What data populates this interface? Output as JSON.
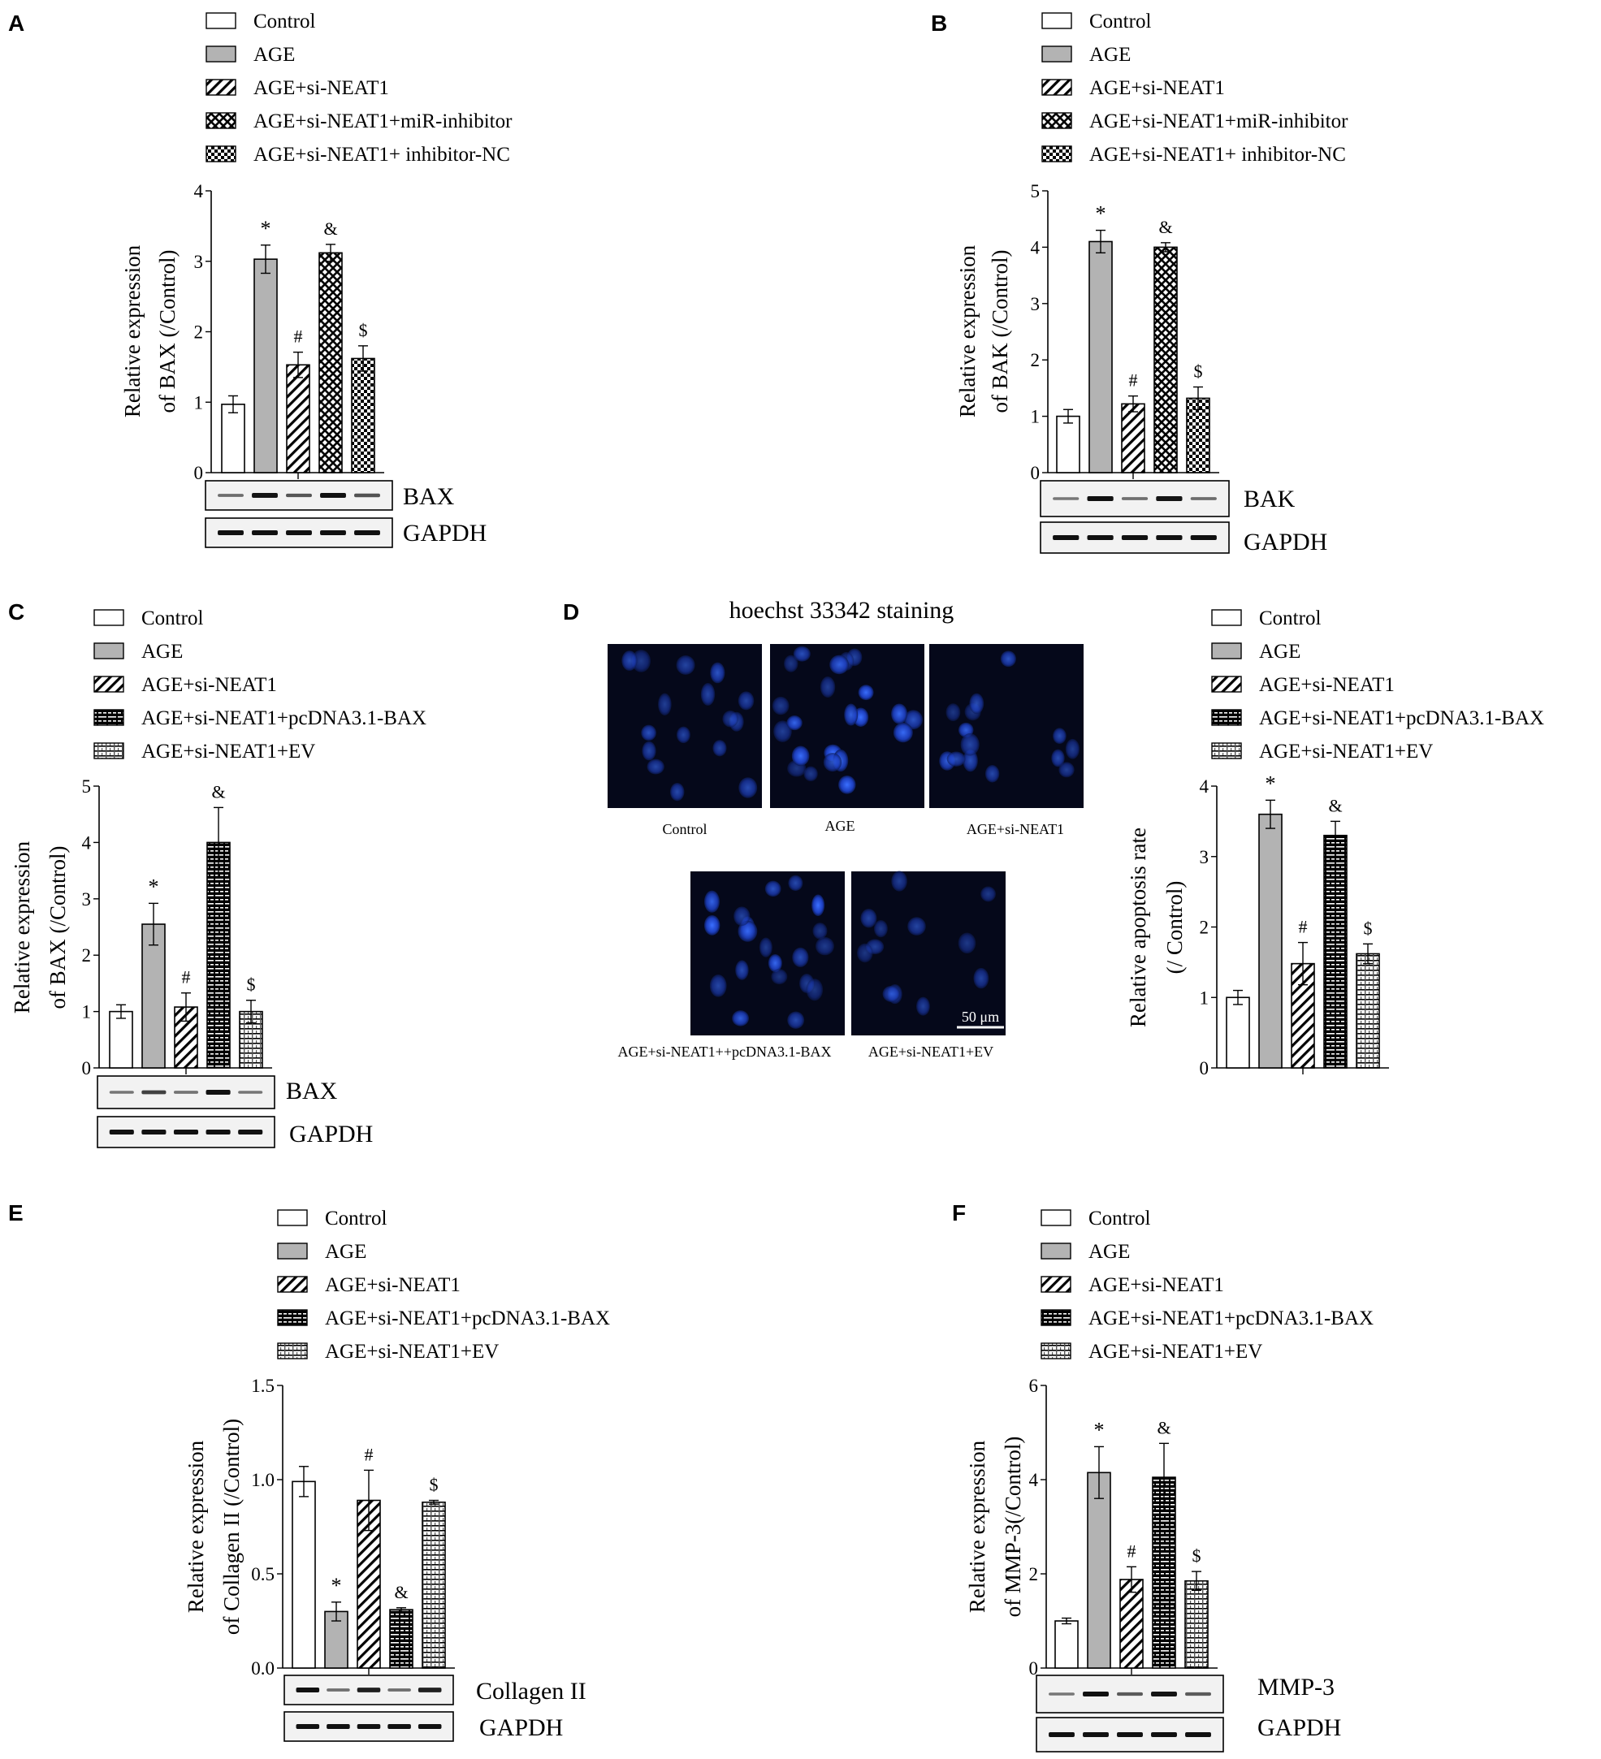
{
  "panels": [
    {
      "letter": "A",
      "legend": [
        "Control",
        "AGE",
        "AGE+si-NEAT1",
        "AGE+si-NEAT1+miR-inhibitor",
        "AGE+si-NEAT1+ inhibitor-NC"
      ],
      "blots": [
        "BAX",
        "GAPDH"
      ]
    },
    {
      "letter": "B",
      "legend": [
        "Control",
        "AGE",
        "AGE+si-NEAT1",
        "AGE+si-NEAT1+miR-inhibitor",
        "AGE+si-NEAT1+ inhibitor-NC"
      ],
      "blots": [
        "BAK",
        "GAPDH"
      ]
    },
    {
      "letter": "C",
      "legend": [
        "Control",
        "AGE",
        "AGE+si-NEAT1",
        "AGE+si-NEAT1+pcDNA3.1-BAX",
        "AGE+si-NEAT1+EV"
      ],
      "blots": [
        "BAX",
        "GAPDH"
      ]
    },
    {
      "letter": "D",
      "legend": [
        "Control",
        "AGE",
        "AGE+si-NEAT1",
        "AGE+si-NEAT1+pcDNA3.1-BAX",
        "AGE+si-NEAT1+EV"
      ],
      "blots": [],
      "micrograph": {
        "title": "hoechst 33342 staining",
        "captions": [
          "Control",
          "AGE",
          "AGE+si-NEAT1",
          "AGE+si-NEAT1++pcDNA3.1-BAX",
          "AGE+si-NEAT1+EV"
        ],
        "scale_bar": "50 μm"
      }
    },
    {
      "letter": "E",
      "legend": [
        "Control",
        "AGE",
        "AGE+si-NEAT1",
        "AGE+si-NEAT1+pcDNA3.1-BAX",
        "AGE+si-NEAT1+EV"
      ],
      "blots": [
        "Collagen II",
        "GAPDH"
      ]
    },
    {
      "letter": "F",
      "legend": [
        "Control",
        "AGE",
        "AGE+si-NEAT1",
        "AGE+si-NEAT1+pcDNA3.1-BAX",
        "AGE+si-NEAT1+EV"
      ],
      "blots": [
        "MMP-3",
        "GAPDH"
      ]
    }
  ],
  "chart_data": [
    {
      "panel": "A",
      "type": "bar",
      "ylabel": [
        "Relative expression",
        "of BAX (/Control)"
      ],
      "ylim": [
        0,
        4
      ],
      "ticks": [
        "0",
        "1",
        "2",
        "3",
        "4"
      ],
      "values": [
        0.97,
        3.03,
        1.53,
        3.12,
        1.62
      ],
      "errors": [
        0.12,
        0.2,
        0.18,
        0.12,
        0.18
      ],
      "patterns": [
        "white",
        "gray",
        "hatch",
        "cross",
        "checker"
      ],
      "marks": [
        "",
        "*",
        "#",
        "&",
        "$"
      ]
    },
    {
      "panel": "B",
      "type": "bar",
      "ylabel": [
        "Relative expression",
        "of BAK (/Control)"
      ],
      "ylim": [
        0,
        5
      ],
      "ticks": [
        "0",
        "1",
        "2",
        "3",
        "4",
        "5"
      ],
      "values": [
        1.0,
        4.1,
        1.22,
        4.0,
        1.32
      ],
      "errors": [
        0.12,
        0.2,
        0.14,
        0.08,
        0.2
      ],
      "patterns": [
        "white",
        "gray",
        "hatch",
        "cross",
        "checker"
      ],
      "marks": [
        "",
        "*",
        "#",
        "&",
        "$"
      ]
    },
    {
      "panel": "C",
      "type": "bar",
      "ylabel": [
        "Relative expression",
        "of BAX (/Control)"
      ],
      "ylim": [
        0,
        5
      ],
      "ticks": [
        "0",
        "1",
        "2",
        "3",
        "4",
        "5"
      ],
      "values": [
        1.0,
        2.55,
        1.08,
        4.0,
        1.0
      ],
      "errors": [
        0.12,
        0.37,
        0.25,
        0.62,
        0.2
      ],
      "patterns": [
        "white",
        "gray",
        "hatch",
        "brick",
        "grid"
      ],
      "marks": [
        "",
        "*",
        "#",
        "&",
        "$"
      ]
    },
    {
      "panel": "D",
      "type": "bar",
      "ylabel": [
        "Relative apoptosis rate",
        "(/ Control)"
      ],
      "ylim": [
        0,
        4
      ],
      "ticks": [
        "0",
        "1",
        "2",
        "3",
        "4"
      ],
      "values": [
        1.0,
        3.6,
        1.48,
        3.3,
        1.62
      ],
      "errors": [
        0.1,
        0.2,
        0.3,
        0.2,
        0.14
      ],
      "patterns": [
        "white",
        "gray",
        "hatch",
        "brick",
        "grid"
      ],
      "marks": [
        "",
        "*",
        "#",
        "&",
        "$"
      ]
    },
    {
      "panel": "E",
      "type": "bar",
      "ylabel": [
        "Relative expression",
        "of Collagen II (/Control)"
      ],
      "ylim": [
        0,
        1.5
      ],
      "ticks": [
        "0.0",
        "0.5",
        "1.0",
        "1.5"
      ],
      "values": [
        0.99,
        0.3,
        0.89,
        0.31,
        0.88
      ],
      "errors": [
        0.08,
        0.05,
        0.16,
        0.01,
        0.01
      ],
      "patterns": [
        "white",
        "gray",
        "hatch",
        "brick",
        "grid"
      ],
      "marks": [
        "",
        "*",
        "#",
        "&",
        "$"
      ]
    },
    {
      "panel": "F",
      "type": "bar",
      "ylabel": [
        "Relative expression",
        "of MMP-3(/Control)"
      ],
      "ylim": [
        0,
        6
      ],
      "ticks": [
        "0",
        "2",
        "4",
        "6"
      ],
      "values": [
        1.0,
        4.15,
        1.88,
        4.05,
        1.85
      ],
      "errors": [
        0.06,
        0.55,
        0.27,
        0.72,
        0.2
      ],
      "patterns": [
        "white",
        "gray",
        "hatch",
        "brick",
        "grid"
      ],
      "marks": [
        "",
        "*",
        "#",
        "&",
        "$"
      ]
    }
  ]
}
